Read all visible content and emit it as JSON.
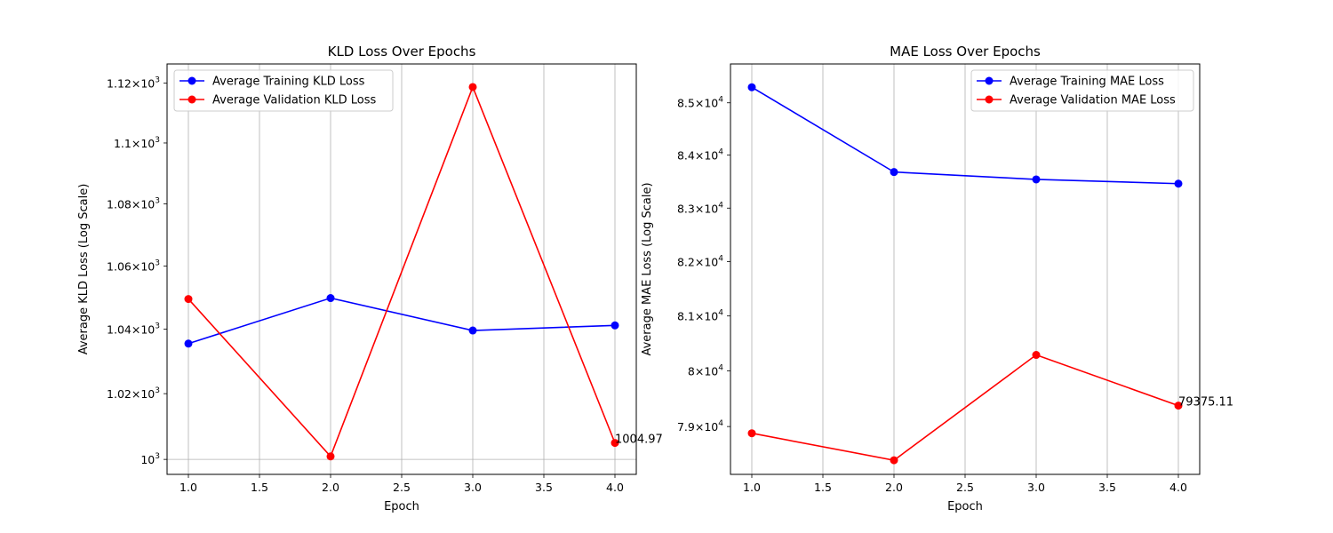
{
  "chart_data": [
    {
      "type": "line",
      "title": "KLD Loss Over Epochs",
      "xlabel": "Epoch",
      "ylabel": "Average KLD Loss (Log Scale)",
      "yscale": "log",
      "x": [
        1.0,
        2.0,
        3.0,
        4.0
      ],
      "xlim": [
        0.85,
        4.15
      ],
      "ylim": [
        995.5,
        1126.5
      ],
      "xticks": [
        1.0,
        1.5,
        2.0,
        2.5,
        3.0,
        3.5,
        4.0
      ],
      "xtick_labels": [
        "1.0",
        "1.5",
        "2.0",
        "2.5",
        "3.0",
        "3.5",
        "4.0"
      ],
      "yticks": [
        1000,
        1020,
        1040,
        1060,
        1080,
        1100,
        1120
      ],
      "ytick_labels": [
        {
          "mantissa": "",
          "base": "10",
          "exp": "3"
        },
        {
          "mantissa": "1.02",
          "base": "10",
          "exp": "3"
        },
        {
          "mantissa": "1.04",
          "base": "10",
          "exp": "3"
        },
        {
          "mantissa": "1.06",
          "base": "10",
          "exp": "3"
        },
        {
          "mantissa": "1.08",
          "base": "10",
          "exp": "3"
        },
        {
          "mantissa": "1.1",
          "base": "10",
          "exp": "3"
        },
        {
          "mantissa": "1.12",
          "base": "10",
          "exp": "3"
        }
      ],
      "grid": "x",
      "legend_position": "upper-left",
      "series": [
        {
          "name": "Average Training KLD Loss",
          "color": "#0000ff",
          "values": [
            1035.5,
            1049.8,
            1039.6,
            1041.2
          ]
        },
        {
          "name": "Average Validation KLD Loss",
          "color": "#ff0000",
          "values": [
            1049.5,
            1000.9,
            1118.7,
            1004.97
          ]
        }
      ],
      "annotations": [
        {
          "x": 4.0,
          "y": 1004.97,
          "text": "1004.97"
        }
      ]
    },
    {
      "type": "line",
      "title": "MAE Loss Over Epochs",
      "xlabel": "Epoch",
      "ylabel": "Average MAE Loss (Log Scale)",
      "yscale": "log",
      "x": [
        1.0,
        2.0,
        3.0,
        4.0
      ],
      "xlim": [
        0.85,
        4.15
      ],
      "ylim": [
        78150,
        85750
      ],
      "xticks": [
        1.0,
        1.5,
        2.0,
        2.5,
        3.0,
        3.5,
        4.0
      ],
      "xtick_labels": [
        "1.0",
        "1.5",
        "2.0",
        "2.5",
        "3.0",
        "3.5",
        "4.0"
      ],
      "yticks": [
        79000,
        80000,
        81000,
        82000,
        83000,
        84000,
        85000
      ],
      "ytick_labels": [
        {
          "mantissa": "7.9",
          "base": "10",
          "exp": "4"
        },
        {
          "mantissa": "8",
          "base": "10",
          "exp": "4"
        },
        {
          "mantissa": "8.1",
          "base": "10",
          "exp": "4"
        },
        {
          "mantissa": "8.2",
          "base": "10",
          "exp": "4"
        },
        {
          "mantissa": "8.3",
          "base": "10",
          "exp": "4"
        },
        {
          "mantissa": "8.4",
          "base": "10",
          "exp": "4"
        },
        {
          "mantissa": "8.5",
          "base": "10",
          "exp": "4"
        }
      ],
      "grid": "x",
      "legend_position": "upper-right",
      "series": [
        {
          "name": "Average Training MAE Loss",
          "color": "#0000ff",
          "values": [
            85300,
            83680,
            83540,
            83460
          ]
        },
        {
          "name": "Average Validation MAE Loss",
          "color": "#ff0000",
          "values": [
            78880,
            78400,
            80290,
            79375.11
          ]
        }
      ],
      "annotations": [
        {
          "x": 4.0,
          "y": 79375.11,
          "text": "79375.11"
        }
      ]
    }
  ]
}
